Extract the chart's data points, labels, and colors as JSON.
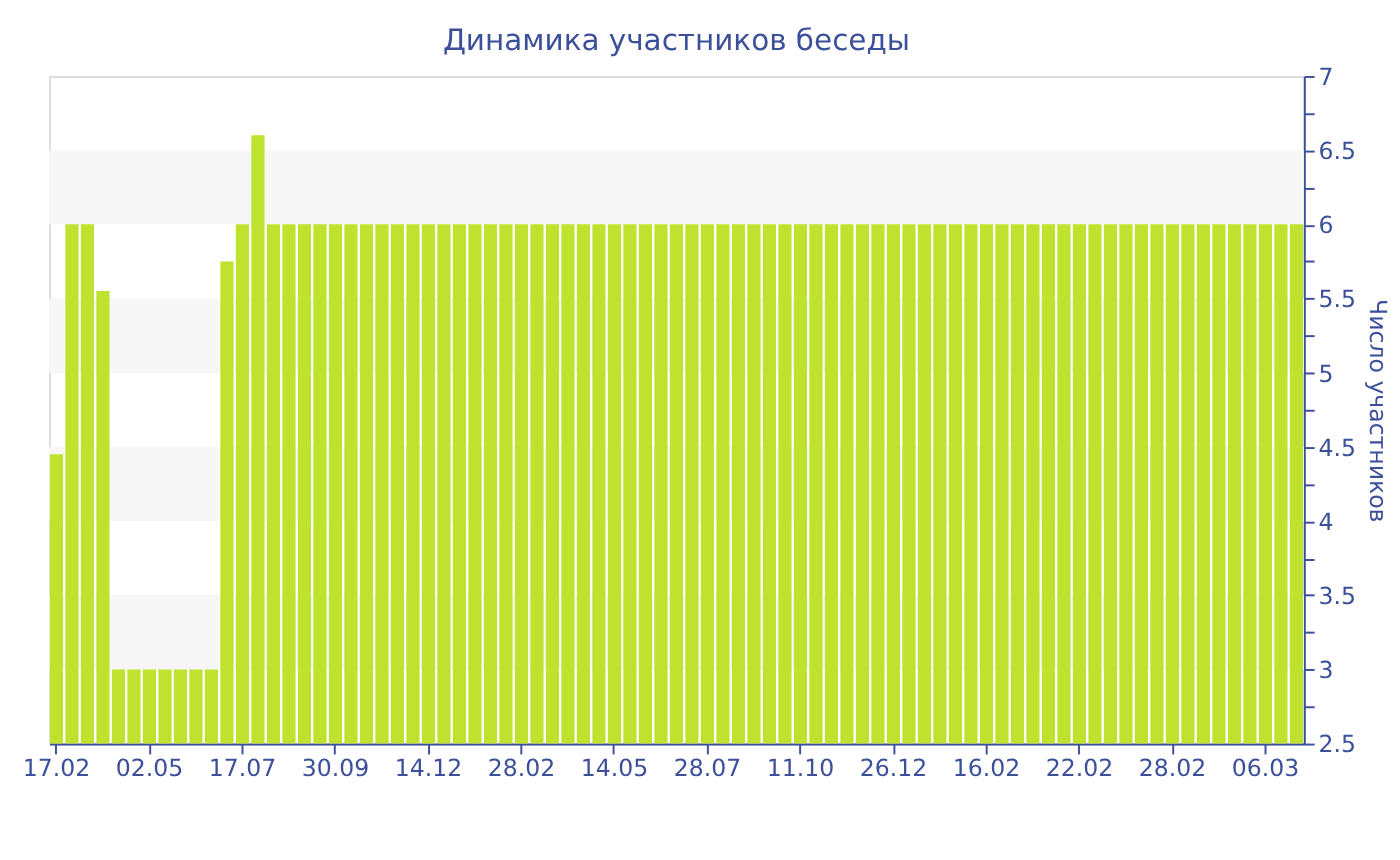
{
  "chart_data": {
    "type": "bar",
    "title": "Динамика участников беседы",
    "ylabel": "Число участников",
    "categories": [
      "17.02",
      null,
      null,
      null,
      null,
      null,
      "02.05",
      null,
      null,
      null,
      null,
      null,
      "17.07",
      null,
      null,
      null,
      null,
      null,
      "30.09",
      null,
      null,
      null,
      null,
      null,
      "14.12",
      null,
      null,
      null,
      null,
      null,
      "28.02",
      null,
      null,
      null,
      null,
      null,
      "14.05",
      null,
      null,
      null,
      null,
      null,
      "28.07",
      null,
      null,
      null,
      null,
      null,
      "11.10",
      null,
      null,
      null,
      null,
      null,
      "26.12",
      null,
      null,
      null,
      null,
      null,
      "16.02",
      null,
      null,
      null,
      null,
      null,
      "22.02",
      null,
      null,
      null,
      null,
      null,
      "28.02",
      null,
      null,
      null,
      null,
      null,
      "06.03",
      null,
      null
    ],
    "values": [
      4.45,
      6,
      6,
      5.55,
      3,
      3,
      3,
      3,
      3,
      3,
      3,
      5.75,
      6,
      6.6,
      6,
      6,
      6,
      6,
      6,
      6,
      6,
      6,
      6,
      6,
      6,
      6,
      6,
      6,
      6,
      6,
      6,
      6,
      6,
      6,
      6,
      6,
      6,
      6,
      6,
      6,
      6,
      6,
      6,
      6,
      6,
      6,
      6,
      6,
      6,
      6,
      6,
      6,
      6,
      6,
      6,
      6,
      6,
      6,
      6,
      6,
      6,
      6,
      6,
      6,
      6,
      6,
      6,
      6,
      6,
      6,
      6,
      6,
      6,
      6,
      6,
      6,
      6,
      6,
      6,
      6,
      6
    ],
    "color": "#bfe22f",
    "ylim": [
      2.5,
      7
    ],
    "yticks": [
      2.5,
      {
        "value": 2.75,
        "label": null
      },
      3,
      {
        "value": 3.25,
        "label": null
      },
      3.5,
      {
        "value": 3.75,
        "label": null
      },
      4,
      {
        "value": 4.25,
        "label": null
      },
      4.5,
      {
        "value": 4.75,
        "label": null
      },
      5,
      {
        "value": 5.25,
        "label": null
      },
      5.5,
      {
        "value": 5.75,
        "label": null
      },
      6,
      {
        "value": 6.25,
        "label": null
      },
      6.5,
      {
        "value": 6.75,
        "label": null
      },
      7
    ],
    "bands": [
      {
        "axis": "y",
        "from": 3,
        "to": 3.5,
        "color": "#f7f7f7"
      },
      {
        "axis": "y",
        "from": 4,
        "to": 4.5,
        "color": "#f7f7f7"
      },
      {
        "axis": "y",
        "from": 5,
        "to": 5.5,
        "color": "#f7f7f7"
      },
      {
        "axis": "y",
        "from": 6,
        "to": 6.5,
        "color": "#f7f7f7"
      }
    ],
    "grid": false
  }
}
